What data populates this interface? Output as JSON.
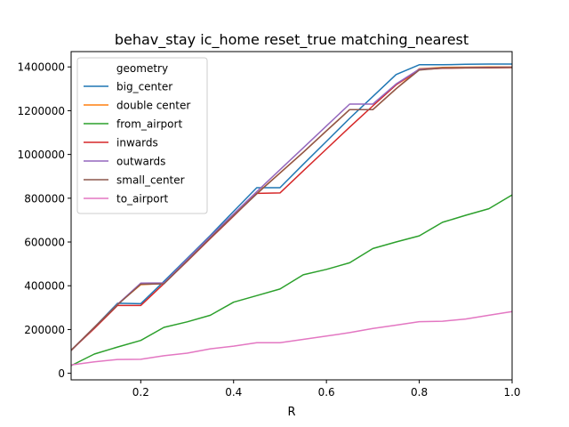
{
  "chart_data": {
    "type": "line",
    "title": "behav_stay ic_home reset_true matching_nearest",
    "xlabel": "R",
    "ylabel": "",
    "xlim": [
      0.05,
      1.0
    ],
    "ylim": [
      -30000,
      1470000
    ],
    "xticks": [
      0.2,
      0.4,
      0.6,
      0.8,
      1.0
    ],
    "xtick_labels": [
      "0.2",
      "0.4",
      "0.6",
      "0.8",
      "1.0"
    ],
    "yticks": [
      0,
      200000,
      400000,
      600000,
      800000,
      1000000,
      1200000,
      1400000
    ],
    "ytick_labels": [
      "0",
      "200000",
      "400000",
      "600000",
      "800000",
      "1000000",
      "1200000",
      "1400000"
    ],
    "grid": false,
    "legend": {
      "title": "geometry",
      "placement": "upper-left"
    },
    "x": [
      0.05,
      0.1,
      0.15,
      0.2,
      0.25,
      0.3,
      0.35,
      0.4,
      0.45,
      0.5,
      0.55,
      0.6,
      0.65,
      0.7,
      0.75,
      0.8,
      0.85,
      0.9,
      0.95,
      1.0
    ],
    "series": [
      {
        "name": "big_center",
        "color": "#1f77b4",
        "values": [
          105000,
          210000,
          320000,
          318000,
          420000,
          525000,
          630000,
          740000,
          848000,
          848000,
          955000,
          1060000,
          1165000,
          1265000,
          1365000,
          1410000,
          1410000,
          1412000,
          1413000,
          1413000
        ]
      },
      {
        "name": "double center",
        "color": "#ff7f0e",
        "values": [
          105000,
          210000,
          315000,
          405000,
          410000,
          515000,
          620000,
          722000,
          822000,
          915000,
          1010000,
          1108000,
          1205000,
          1205000,
          1300000,
          1392000,
          1398000,
          1399000,
          1400000,
          1400000
        ]
      },
      {
        "name": "from_airport",
        "color": "#2ca02c",
        "values": [
          35000,
          88000,
          120000,
          150000,
          210000,
          235000,
          265000,
          325000,
          355000,
          385000,
          450000,
          475000,
          505000,
          570000,
          600000,
          628000,
          690000,
          722000,
          752000,
          815000
        ]
      },
      {
        "name": "inwards",
        "color": "#d62728",
        "values": [
          105000,
          205000,
          310000,
          310000,
          410000,
          512000,
          616000,
          718000,
          822000,
          824000,
          925000,
          1025000,
          1125000,
          1222000,
          1318000,
          1388000,
          1394000,
          1395000,
          1396000,
          1397000
        ]
      },
      {
        "name": "outwards",
        "color": "#9467bd",
        "values": [
          105000,
          210000,
          315000,
          412000,
          413000,
          520000,
          625000,
          728000,
          830000,
          930000,
          1030000,
          1130000,
          1230000,
          1230000,
          1322000,
          1390000,
          1395000,
          1397000,
          1398000,
          1399000
        ]
      },
      {
        "name": "small_center",
        "color": "#8c564b",
        "values": [
          105000,
          210000,
          313000,
          407000,
          409000,
          513000,
          618000,
          720000,
          820000,
          915000,
          1010000,
          1108000,
          1205000,
          1205000,
          1300000,
          1386000,
          1395000,
          1396000,
          1397000,
          1398000
        ]
      },
      {
        "name": "to_airport",
        "color": "#e377c2",
        "values": [
          38000,
          52000,
          63000,
          64000,
          80000,
          92000,
          112000,
          124000,
          140000,
          140000,
          155000,
          170000,
          186000,
          205000,
          220000,
          236000,
          238000,
          248000,
          265000,
          282000
        ]
      }
    ]
  }
}
